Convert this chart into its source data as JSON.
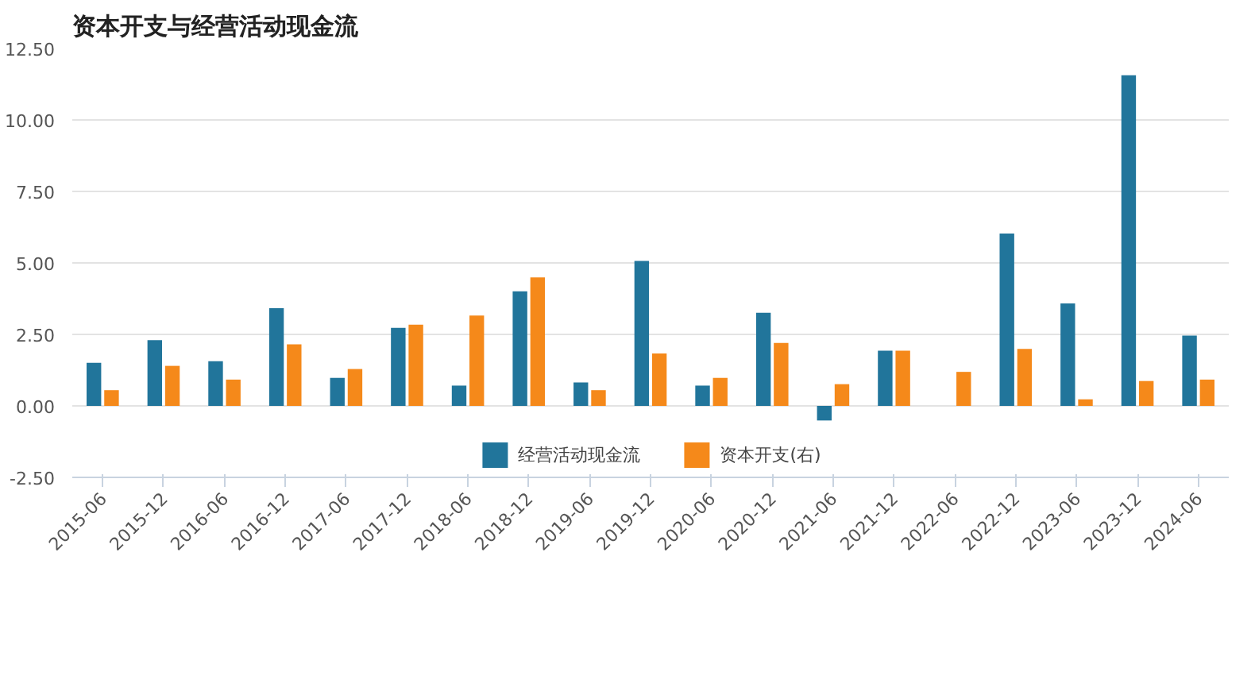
{
  "chart_data": {
    "type": "bar",
    "title": "资本开支与经营活动现金流",
    "categories": [
      "2015-06",
      "2015-12",
      "2016-06",
      "2016-12",
      "2017-06",
      "2017-12",
      "2018-06",
      "2018-12",
      "2019-06",
      "2019-12",
      "2020-06",
      "2020-12",
      "2021-06",
      "2021-12",
      "2022-06",
      "2022-12",
      "2023-06",
      "2023-12",
      "2024-06"
    ],
    "series": [
      {
        "name": "经营活动现金流",
        "color": "#21759b",
        "values": [
          1.51,
          2.3,
          1.56,
          3.42,
          0.98,
          2.73,
          0.71,
          4.01,
          0.82,
          5.07,
          0.71,
          3.26,
          -0.51,
          1.93,
          null,
          6.03,
          3.58,
          11.56,
          2.46
        ]
      },
      {
        "name": "资本开支(右)",
        "color": "#f5891a",
        "values": [
          0.55,
          1.4,
          0.92,
          2.15,
          1.29,
          2.84,
          3.16,
          4.49,
          0.55,
          1.83,
          0.98,
          2.2,
          0.76,
          1.93,
          1.19,
          1.99,
          0.23,
          0.87,
          0.92
        ]
      }
    ],
    "ylim": [
      -2.5,
      12.5
    ],
    "yticks": [
      {
        "value": -2.5,
        "label": "-2.50"
      },
      {
        "value": 0,
        "label": "0.00"
      },
      {
        "value": 2.5,
        "label": "2.50"
      },
      {
        "value": 5,
        "label": "5.00"
      },
      {
        "value": 7.5,
        "label": "7.50"
      },
      {
        "value": 10,
        "label": "10.00"
      },
      {
        "value": 12.5,
        "label": "12.50"
      }
    ],
    "grid": "y",
    "legend": "bottom"
  }
}
